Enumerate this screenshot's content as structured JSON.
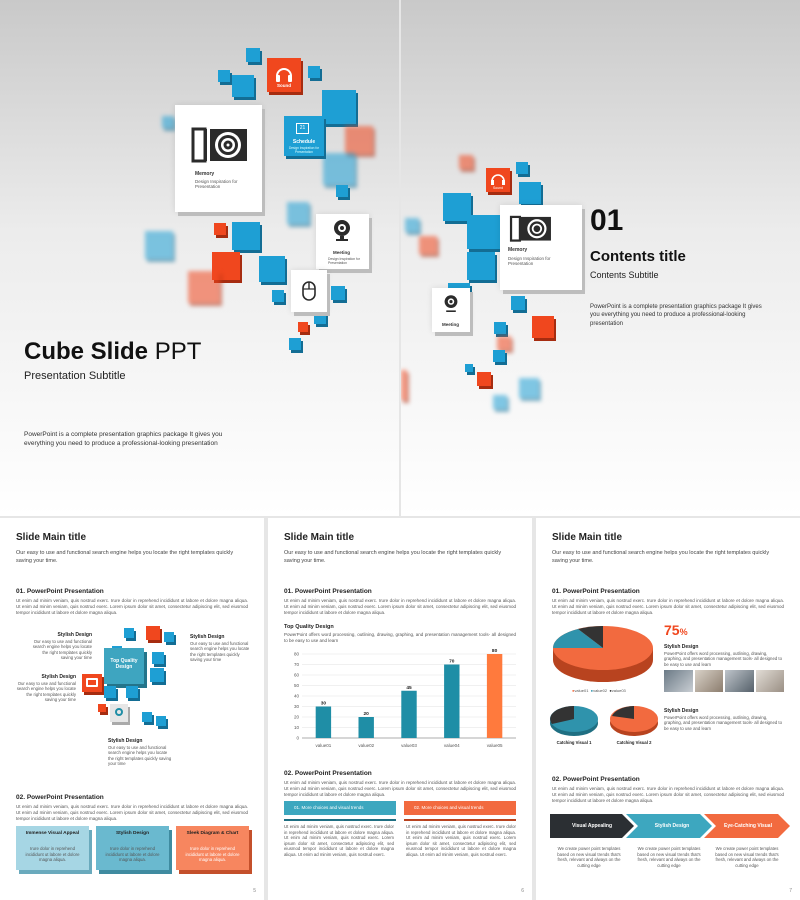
{
  "slide1": {
    "title_bold": "Cube Slide",
    "title_light": " PPT",
    "subtitle": "Presentation Subtitle",
    "description": "PowerPoint is a complete presentation graphics package It gives you everything you need to produce a professional-looking presentation",
    "card_memory": {
      "label": "Memory",
      "sub": "Design Inspiration for Presentation"
    },
    "card_sound": {
      "label": "Sound"
    },
    "card_schedule": {
      "label": "Schedule",
      "sub": "Design Inspiration for Presentation",
      "day": "21"
    },
    "card_meeting": {
      "label": "Meeting",
      "sub": "Design Inspiration for Presentation"
    }
  },
  "slide2": {
    "number": "01",
    "title": "Contents title",
    "subtitle": "Contents Subtitle",
    "description": "PowerPoint is a complete presentation graphics package It gives you everything you need to produce a professional-looking presentation",
    "card_memory": {
      "label": "Memory",
      "sub": "Design Inspiration for Presentation"
    },
    "card_sound": {
      "label": "Sound"
    },
    "card_meeting": {
      "label": "Meeting"
    }
  },
  "common": {
    "slide_title": "Slide Main title",
    "lead": "Our easy to use and functional search engine helps you locate the right templates quickly saving your time.",
    "sec1": "01. PowerPoint Presentation",
    "sec2": "02. PowerPoint Presentation",
    "lorem": "Ut enim ad minim veniam, quis nostrud exerc. Irure dolor in reprehend incididunt ut labore et dolore magna aliqua. Ut enim ad minim veniam, quis nostrud exerc. Lorem ipsum dolor sit amet, consectetur adipiscing elit, sed eiusmod tempor incididunt ut labore et dolore magna aliqua.",
    "lorem_short": "Ut enim ad minim veniam, quis nostrud exerc. Irure dolor in reprehend incididunt ut labore et dolore magna aliqua. Ut enim ad minim veniam, quis nostrud exerc. Lorem ipsum dolor sit amet, consectetur adipiscing elit, sed eiusmod tempor incididunt ut labore et dolore magna aliqua. Ut enim ad minim veniam, quis nostrud exerc."
  },
  "slide3": {
    "page": "5",
    "center_label": "Top Quality Design",
    "callouts": [
      {
        "title": "Stylish Design",
        "text": "Our easy to use and functional search engine helps you locate the right templates quickly saving your time"
      },
      {
        "title": "Stylish Design",
        "text": "Our easy to use and functional search engine helps you locate the right templates quickly saving your time"
      },
      {
        "title": "Stylish Design",
        "text": "Our easy to use and functional search engine helps you locate the right templates quickly saving your time"
      },
      {
        "title": "Stylish Design",
        "text": "Our easy to use and functional search engine helps you locate the right templates quickly saving your time"
      }
    ],
    "boxes": [
      {
        "title": "Immense Visual Appeal",
        "text": "Irure dolor in reprehend incididunt ut labore et dolore magna aliqua."
      },
      {
        "title": "Stylish Design",
        "text": "Irure dolor in reprehend incididunt ut labore et dolore magna aliqua."
      },
      {
        "title": "Sleek Diagram & Chart",
        "text": "Irure dolor in reprehend incididunt ut labore et dolore magna aliqua."
      }
    ]
  },
  "slide4": {
    "page": "6",
    "chart_heading": "Top Quality Design",
    "chart_desc": "PowerPoint offers word processing, outlining, drawing, graphing, and presentation management tools- all designed to be easy to use and learn",
    "band1": "01. More choices and visual trends",
    "band2": "02. More choices and visual trends",
    "col_text": "Ut enim ad minim veniam, quis nostrud exerc. Irure dolor in reprehend incididunt ut labore et dolore magna aliqua. Ut enim ad minim veniam, quis nostrud exerc. Lorem ipsum dolor sit amet, consectetur adipiscing elit, sed eiusmod tempor incididunt ut labore et dolore magna aliqua. Ut enim ad minim veniam, quis nostrud exerc."
  },
  "chart_data": {
    "type": "bar",
    "categories": [
      "value01",
      "value02",
      "value03",
      "value04",
      "value05"
    ],
    "values": [
      30,
      20,
      45,
      70,
      80
    ],
    "ylim": [
      0,
      80
    ],
    "yticks": [
      0,
      10,
      20,
      30,
      40,
      50,
      60,
      70,
      80
    ],
    "colors": [
      "#1f8ea6",
      "#1f8ea6",
      "#1f8ea6",
      "#1f8ea6",
      "#ff7a3d"
    ],
    "title": "",
    "xlabel": "",
    "ylabel": "",
    "grid": true
  },
  "slide5": {
    "page": "7",
    "percent": "75",
    "percent_sign": "%",
    "stylish1_title": "Stylish Design",
    "stylish1_text": "PowerPoint offers word processing, outlining, drawing, graphing, and presentation management tools- all designed to be easy to use and learn",
    "stylish2_title": "Stylish Design",
    "stylish2_text": "PowerPoint offers word processing, outlining, drawing, graphing, and presentation management tools- all designed to be easy to use and learn",
    "legend": [
      "value01",
      "value02",
      "value03"
    ],
    "visual1": "Catching Visual 1",
    "visual2": "Catching Visual 2",
    "arrows": [
      "Visual Appealing",
      "Stylish Design",
      "Eye-Catching Visual"
    ],
    "arrow_text": "We create power point templates based on new visual trends that's fresh, relevant and always on the cutting edge"
  }
}
